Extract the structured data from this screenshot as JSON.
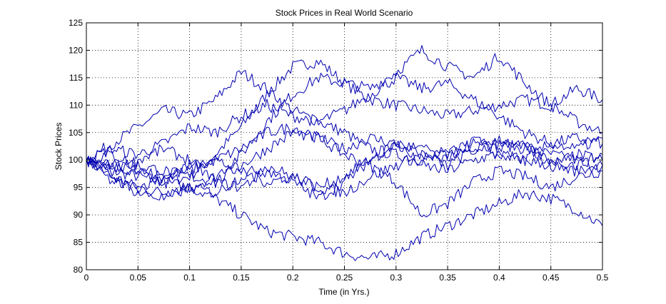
{
  "chart_data": {
    "type": "line",
    "title": "Stock Prices in Real World Scenario",
    "xlabel": "Time (in Yrs.)",
    "ylabel": "Stock Prices",
    "xlim": [
      0,
      0.5
    ],
    "ylim": [
      80,
      125
    ],
    "xticks": [
      0,
      0.05,
      0.1,
      0.15,
      0.2,
      0.25,
      0.3,
      0.35,
      0.4,
      0.45,
      0.5
    ],
    "xtick_labels": [
      "0",
      "0.05",
      "0.1",
      "0.15",
      "0.2",
      "0.25",
      "0.3",
      "0.35",
      "0.4",
      "0.45",
      "0.5"
    ],
    "yticks": [
      80,
      85,
      90,
      95,
      100,
      105,
      110,
      115,
      120,
      125
    ],
    "ytick_labels": [
      "80",
      "85",
      "90",
      "95",
      "100",
      "105",
      "110",
      "115",
      "120",
      "125"
    ],
    "grid": true,
    "line_color": "#0000b0",
    "x": [
      0,
      0.025,
      0.05,
      0.075,
      0.1,
      0.125,
      0.15,
      0.175,
      0.2,
      0.225,
      0.25,
      0.275,
      0.3,
      0.325,
      0.35,
      0.375,
      0.4,
      0.425,
      0.45,
      0.475,
      0.5
    ],
    "series": [
      {
        "values": [
          100,
          98,
          97,
          96,
          97,
          101,
          106,
          112,
          117,
          118,
          114,
          111,
          110,
          109,
          108,
          109,
          110,
          111,
          110,
          113,
          111
        ]
      },
      {
        "values": [
          100,
          103,
          106,
          109,
          108,
          111,
          116,
          113,
          109,
          107,
          105,
          102,
          101,
          100,
          101,
          102,
          103,
          102,
          101,
          100,
          99
        ]
      },
      {
        "values": [
          100,
          97,
          95,
          94,
          95,
          93,
          90,
          87,
          86,
          85,
          83,
          82,
          83,
          86,
          88,
          90,
          92,
          94,
          93,
          91,
          88
        ]
      },
      {
        "values": [
          100,
          99,
          98,
          96,
          95,
          97,
          101,
          107,
          112,
          115,
          114,
          113,
          116,
          120,
          117,
          115,
          119,
          114,
          110,
          107,
          105
        ]
      },
      {
        "values": [
          100,
          102,
          101,
          103,
          106,
          105,
          108,
          110,
          108,
          107,
          109,
          112,
          115,
          113,
          114,
          111,
          108,
          105,
          103,
          104,
          103
        ]
      },
      {
        "values": [
          100,
          96,
          95,
          97,
          98,
          100,
          102,
          105,
          106,
          104,
          101,
          99,
          96,
          90,
          92,
          96,
          98,
          97,
          95,
          97,
          98
        ]
      },
      {
        "values": [
          100,
          101,
          99,
          98,
          97,
          96,
          99,
          102,
          105,
          104,
          102,
          104,
          103,
          99,
          98,
          100,
          101,
          100,
          99,
          101,
          100
        ]
      },
      {
        "values": [
          100,
          98,
          100,
          102,
          100,
          96,
          95,
          98,
          96,
          93,
          96,
          100,
          103,
          101,
          100,
          104,
          102,
          103,
          99,
          98,
          99
        ]
      },
      {
        "values": [
          100,
          97,
          94,
          93,
          95,
          94,
          97,
          99,
          97,
          95,
          94,
          97,
          99,
          101,
          99,
          102,
          104,
          102,
          100,
          99,
          101
        ]
      },
      {
        "values": [
          100,
          99,
          98,
          97,
          99,
          100,
          98,
          96,
          97,
          95,
          97,
          100,
          103,
          102,
          101,
          103,
          101,
          100,
          103,
          102,
          104
        ]
      }
    ]
  }
}
